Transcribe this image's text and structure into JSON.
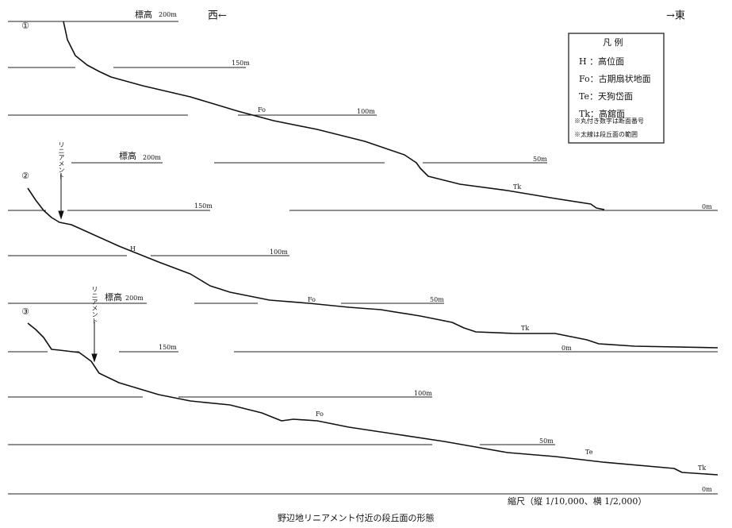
{
  "header": {
    "west": "西←",
    "east": "→東"
  },
  "legend": {
    "title": "凡 例",
    "items": [
      "H ：高位面",
      "Fo：古期扇状地面",
      "Te：天狗岱面",
      "Tk：高舘面"
    ],
    "notes": [
      "※丸付き数字は断面番号",
      "※太線は段丘面の範囲"
    ]
  },
  "profiles": [
    {
      "number": "①",
      "elevations": [
        "標高",
        "200m",
        "150m",
        "100m",
        "50m",
        "0m"
      ],
      "surfaces": [
        "Fo",
        "Tk"
      ]
    },
    {
      "number": "②",
      "lineament": "リニアメント",
      "elevations": [
        "標高",
        "200m",
        "150m",
        "100m",
        "50m",
        "0m"
      ],
      "surfaces": [
        "H",
        "Fo",
        "Tk"
      ]
    },
    {
      "number": "③",
      "lineament": "リニアメント",
      "elevations": [
        "標高",
        "200m",
        "150m",
        "100m",
        "50m",
        "0m"
      ],
      "surfaces": [
        "Fo",
        "Te",
        "Tk"
      ]
    }
  ],
  "scale": "縮尺（縦 1/10,000、横 1/2,000）",
  "caption": "野辺地リニアメント付近の段丘面の形態"
}
